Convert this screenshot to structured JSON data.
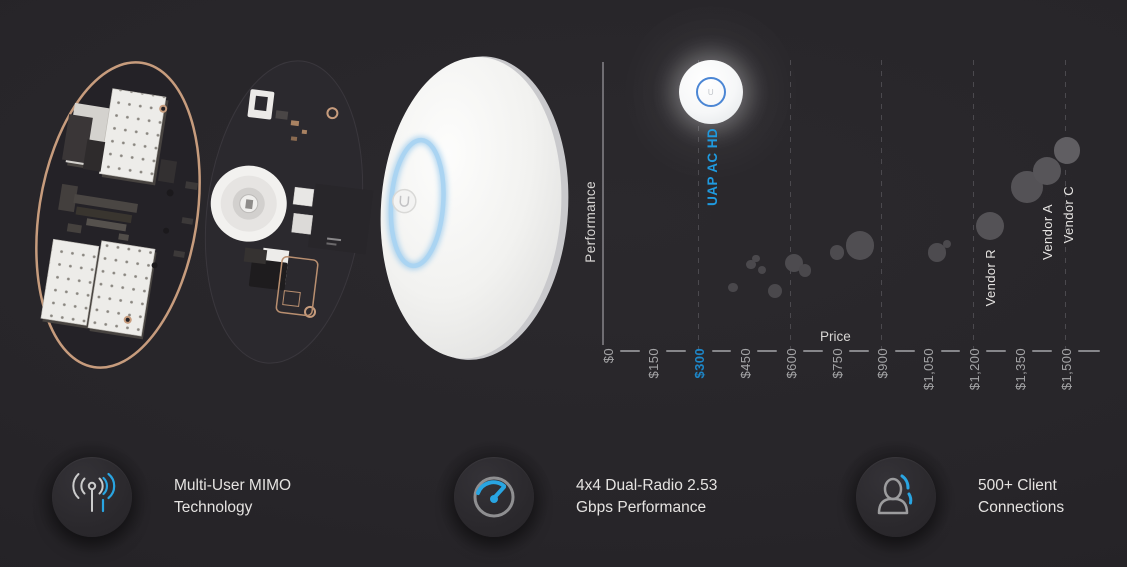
{
  "product": {
    "name": "UAP AC HD",
    "accent_blue": "#1f9adf",
    "tick_blue": "#1d87c9",
    "led_ring_color": "#9fd0f0"
  },
  "hero_image": {
    "description_icons": [
      "device-antenna-pcb-layer",
      "device-main-pcb-layer",
      "device-white-dome-cover",
      "blue-led-ring"
    ]
  },
  "chart_data": {
    "type": "scatter",
    "title": "",
    "xlabel": "Price",
    "ylabel": "Performance",
    "xlim": [
      0,
      1500
    ],
    "ylim": [
      0,
      100
    ],
    "y_ticks": "none (relative performance scale)",
    "grid": "dashed vertical gridlines every $300",
    "x_ticks": [
      "$0",
      "$150",
      "$300",
      "$450",
      "$600",
      "$750",
      "$900",
      "$1,050",
      "$1,200",
      "$1,350",
      "$1,500"
    ],
    "x_tick_values": [
      0,
      150,
      300,
      450,
      600,
      750,
      900,
      1050,
      1200,
      1350,
      1500
    ],
    "highlighted_tick": "$300",
    "gridlines_at": [
      300,
      600,
      900,
      1200,
      1500
    ],
    "product": {
      "label": "UAP AC HD",
      "price": 340,
      "performance": 89,
      "r": 32
    },
    "bubbles": [
      {
        "price": 413,
        "performance": 22,
        "r": 4.7,
        "color": "#49474b"
      },
      {
        "price": 472,
        "performance": 30,
        "r": 4.7,
        "color": "#4b494d"
      },
      {
        "price": 488,
        "performance": 32,
        "r": 3.7,
        "color": "#4b494d"
      },
      {
        "price": 508,
        "performance": 28,
        "r": 4.0,
        "color": "#49474b"
      },
      {
        "price": 550,
        "performance": 21,
        "r": 7.0,
        "color": "#4a484c"
      },
      {
        "price": 612,
        "performance": 30.5,
        "r": 9.0,
        "color": "#4d4b4f"
      },
      {
        "price": 648,
        "performance": 28,
        "r": 6.3,
        "color": "#4a484c"
      },
      {
        "price": 753,
        "performance": 34,
        "r": 7.3,
        "color": "#4d4b4f"
      },
      {
        "price": 829,
        "performance": 36.5,
        "r": 14.3,
        "color": "#504e52"
      },
      {
        "price": 1081,
        "performance": 34,
        "r": 9.3,
        "color": "#4d4b4f"
      },
      {
        "price": 1114,
        "performance": 37,
        "r": 4.3,
        "color": "#4b494d"
      },
      {
        "price": 1254,
        "performance": 43,
        "r": 14,
        "color": "#545256",
        "label": "Vendor R",
        "label_dy": 0
      },
      {
        "price": 1376,
        "performance": 56.5,
        "r": 15.7,
        "color": "#545256"
      },
      {
        "price": 1441,
        "performance": 62,
        "r": 14,
        "color": "#575559",
        "label": "Vendor A",
        "label_dy": 10
      },
      {
        "price": 1507,
        "performance": 69,
        "r": 13.3,
        "color": "#605e62",
        "label": "Vendor C",
        "label_dy": 13
      }
    ]
  },
  "features": [
    {
      "icon": "wireless-antenna-mimo-icon",
      "line1": "Multi-User MIMO",
      "line2": "Technology"
    },
    {
      "icon": "speedometer-icon",
      "line1": "4x4 Dual-Radio 2.53",
      "line2": "Gbps Performance"
    },
    {
      "icon": "client-connections-icon",
      "line1": "500+ Client",
      "line2": "Connections"
    }
  ]
}
